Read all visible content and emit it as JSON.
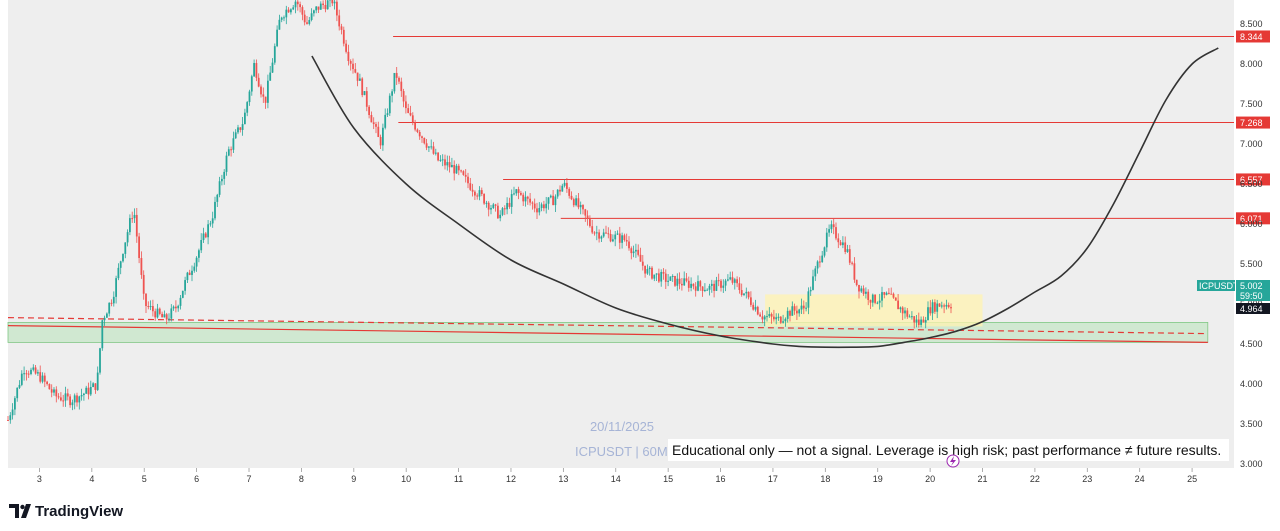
{
  "app": {
    "logo_text": "TradingView"
  },
  "watermark": {
    "date": "20/11/2025",
    "symbol_line": "ICPUSDT | 60M"
  },
  "disclaimer": "Educational only — not a signal. Leverage is high risk; past performance ≠ future results.",
  "price_tags": {
    "symbol": "ICPUSDT",
    "last_price": "5.002",
    "countdown": "59:50",
    "second_price": "4.964"
  },
  "colors": {
    "up": "#26a69a",
    "down": "#ef5350",
    "resistance": "#e53935",
    "support_zone": "#c8e6c9",
    "consolidation_zone": "#fff3b0",
    "cup_curve": "#333333",
    "symbol_tag": "#26a69a",
    "price_tag": "#131722",
    "grid": "#eeeeee"
  },
  "chart_data": {
    "type": "line",
    "title": "",
    "xlabel": "",
    "ylabel": "",
    "x_ticks": [
      "3",
      "4",
      "5",
      "6",
      "7",
      "8",
      "9",
      "10",
      "11",
      "12",
      "13",
      "14",
      "15",
      "16",
      "17",
      "18",
      "19",
      "20",
      "21",
      "22",
      "23",
      "24",
      "25"
    ],
    "y_ticks": [
      "3.000",
      "3.500",
      "4.000",
      "4.500",
      "5.000",
      "5.500",
      "6.000",
      "6.500",
      "7.000",
      "7.500",
      "8.000",
      "8.500"
    ],
    "xlim": [
      2.4,
      25.8
    ],
    "ylim": [
      2.95,
      8.8
    ],
    "grid": false,
    "resistance_levels": [
      {
        "label": "8.344",
        "value": 8.344,
        "x_start": 9.75
      },
      {
        "label": "7.268",
        "value": 7.268,
        "x_start": 9.85
      },
      {
        "label": "6.557",
        "value": 6.557,
        "x_start": 11.85
      },
      {
        "label": "6.071",
        "value": 6.071,
        "x_start": 12.95
      }
    ],
    "support_zone": {
      "x_start": 2.4,
      "x_end": 25.3,
      "y_low": 4.52,
      "y_high": 4.77
    },
    "consolidation_zone": {
      "x_start": 16.85,
      "x_end": 21.0,
      "y_low": 4.72,
      "y_high": 5.12
    },
    "trendlines": [
      {
        "name": "solid",
        "x": [
          2.4,
          25.3
        ],
        "y": [
          4.73,
          4.52
        ]
      },
      {
        "name": "dashed",
        "x": [
          2.4,
          25.3
        ],
        "y": [
          4.83,
          4.63
        ]
      }
    ],
    "cup_curve": {
      "x": [
        8.2,
        9.0,
        10.0,
        11.0,
        12.0,
        13.0,
        14.0,
        15.0,
        16.0,
        17.0,
        17.5,
        18.0,
        18.5,
        19.0,
        19.5,
        20.0,
        20.5,
        21.0,
        21.5,
        22.0,
        22.5,
        23.0,
        23.5,
        24.0,
        24.5,
        25.0,
        25.5
      ],
      "y": [
        8.1,
        7.2,
        6.5,
        6.0,
        5.55,
        5.25,
        4.95,
        4.75,
        4.6,
        4.5,
        4.47,
        4.46,
        4.46,
        4.47,
        4.52,
        4.58,
        4.66,
        4.78,
        4.95,
        5.15,
        5.35,
        5.7,
        6.25,
        6.9,
        7.55,
        8.0,
        8.2
      ]
    },
    "price_path": {
      "x": [
        2.4,
        2.7,
        3.0,
        3.3,
        3.6,
        3.9,
        4.1,
        4.2,
        4.4,
        4.6,
        4.8,
        5.0,
        5.2,
        5.4,
        5.6,
        5.8,
        6.0,
        6.3,
        6.6,
        6.9,
        7.1,
        7.3,
        7.6,
        7.9,
        8.1,
        8.3,
        8.6,
        8.9,
        9.1,
        9.3,
        9.5,
        9.8,
        10.0,
        10.3,
        10.6,
        10.9,
        11.2,
        11.5,
        11.8,
        12.1,
        12.5,
        12.8,
        13.0,
        13.3,
        13.6,
        13.9,
        14.2,
        14.6,
        15.0,
        15.4,
        15.8,
        16.2,
        16.5,
        16.8,
        17.1,
        17.3,
        17.6,
        17.9,
        18.1,
        18.4,
        18.6,
        18.9,
        19.2,
        19.5,
        19.8,
        20.0,
        20.2,
        20.4
      ],
      "y": [
        3.55,
        4.2,
        4.1,
        3.85,
        3.8,
        3.9,
        4.0,
        4.8,
        5.1,
        5.7,
        6.2,
        5.0,
        4.9,
        4.8,
        4.95,
        5.3,
        5.6,
        6.1,
        6.9,
        7.3,
        8.0,
        7.5,
        8.6,
        8.8,
        8.5,
        8.7,
        8.8,
        8.1,
        7.8,
        7.4,
        7.0,
        7.9,
        7.4,
        7.1,
        6.8,
        6.7,
        6.5,
        6.3,
        6.1,
        6.4,
        6.2,
        6.3,
        6.5,
        6.2,
        5.9,
        5.85,
        5.8,
        5.4,
        5.3,
        5.25,
        5.2,
        5.3,
        5.1,
        4.85,
        4.8,
        4.9,
        4.95,
        5.6,
        5.95,
        5.7,
        5.25,
        5.05,
        5.1,
        4.9,
        4.75,
        4.95,
        5.0,
        5.0
      ]
    }
  }
}
